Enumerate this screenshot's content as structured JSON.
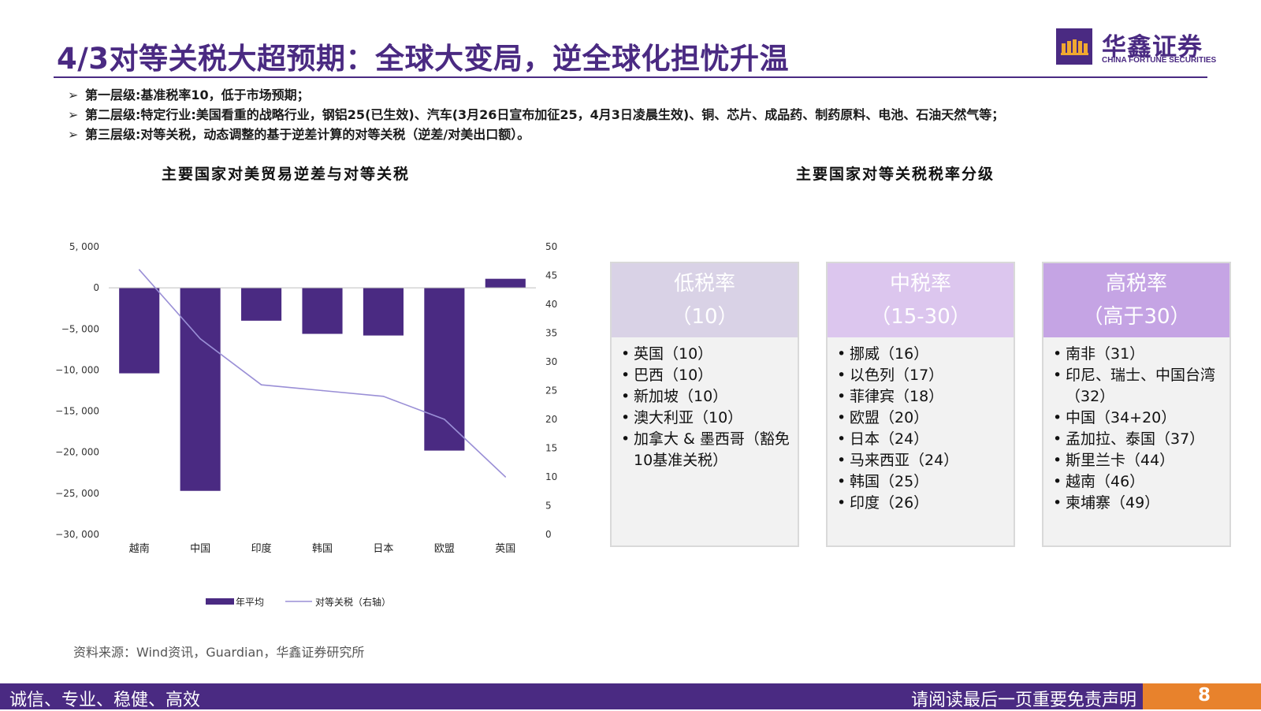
{
  "header": {
    "title": "4/3对等关税大超预期：全球大变局，逆全球化担忧升温",
    "logo": {
      "name_cn": "华鑫证券",
      "name_en": "CHINA FORTUNE SECURITIES",
      "color": "#4a2a82"
    }
  },
  "bullets": [
    {
      "marker": "➢",
      "text": "第一层级:基准税率10，低于市场预期；"
    },
    {
      "marker": "➢",
      "text": "第二层级:特定行业:美国看重的战略行业，钢铝25(已生效)、汽车(3月26日宣布加征25，4月3日凌晨生效)、铜、芯片、成品药、制药原料、电池、石油天然气等；"
    },
    {
      "marker": "➢",
      "text": "第三层级:对等关税，动态调整的基于逆差计算的对等关税（逆差/对美出口额）。"
    }
  ],
  "left_panel": {
    "title": "主要国家对美贸易逆差与对等关税"
  },
  "right_panel": {
    "title": "主要国家对等关税税率分级"
  },
  "chart_data": {
    "type": "bar",
    "categories": [
      "越南",
      "中国",
      "印度",
      "韩国",
      "日本",
      "欧盟",
      "英国"
    ],
    "series": [
      {
        "name": "年平均",
        "kind": "bar",
        "axis": "left",
        "color": "#4a2a82",
        "values": [
          -10400,
          -24700,
          -4000,
          -5600,
          -5800,
          -19800,
          1100
        ]
      },
      {
        "name": "对等关税（右轴）",
        "kind": "line",
        "axis": "right",
        "color": "#9a8fd6",
        "values": [
          46,
          34,
          26,
          25,
          24,
          20,
          10
        ]
      }
    ],
    "y_left": {
      "min": -30000,
      "max": 5000,
      "ticks": [
        5000,
        0,
        -5000,
        -10000,
        -15000,
        -20000,
        -25000,
        -30000
      ],
      "tick_labels": [
        "5, 000",
        "0",
        "−5, 000",
        "−10, 000",
        "−15, 000",
        "−20, 000",
        "−25, 000",
        "−30, 000"
      ]
    },
    "y_right": {
      "min": 0,
      "max": 50,
      "ticks": [
        50,
        45,
        40,
        35,
        30,
        25,
        20,
        15,
        10,
        5,
        0
      ]
    },
    "legend": {
      "position": "bottom"
    },
    "grid": false,
    "title": "",
    "xlabel": "",
    "ylabel": ""
  },
  "tiers": [
    {
      "title": "低税率",
      "range": "（10）",
      "color": "#d9d2e6",
      "items": [
        "英国（10）",
        "巴西（10）",
        "新加坡（10）",
        "澳大利亚（10）",
        "加拿大 & 墨西哥（豁免10基准关税）"
      ]
    },
    {
      "title": "中税率",
      "range": "（15-30）",
      "color": "#dcc6ee",
      "items": [
        "挪威（16）",
        "以色列（17）",
        "菲律宾（18）",
        "欧盟（20）",
        "日本（24）",
        "马来西亚（24）",
        "韩国（25）",
        "印度（26）"
      ]
    },
    {
      "title": "高税率",
      "range": "（高于30）",
      "color": "#c5a4e4",
      "items": [
        "南非（31）",
        "印尼、瑞士、中国台湾（32）",
        "中国（34+20）",
        "孟加拉、泰国（37）",
        "斯里兰卡（44）",
        "越南（46）",
        "柬埔寨（49）"
      ]
    }
  ],
  "source": "资料来源：Wind资讯，Guardian，华鑫证券研究所",
  "footer": {
    "slogan": "诚信、专业、稳健、高效",
    "disclaimer": "请阅读最后一页重要免责声明",
    "page": "8",
    "color": "#4a2a82",
    "page_color": "#e8822c"
  }
}
